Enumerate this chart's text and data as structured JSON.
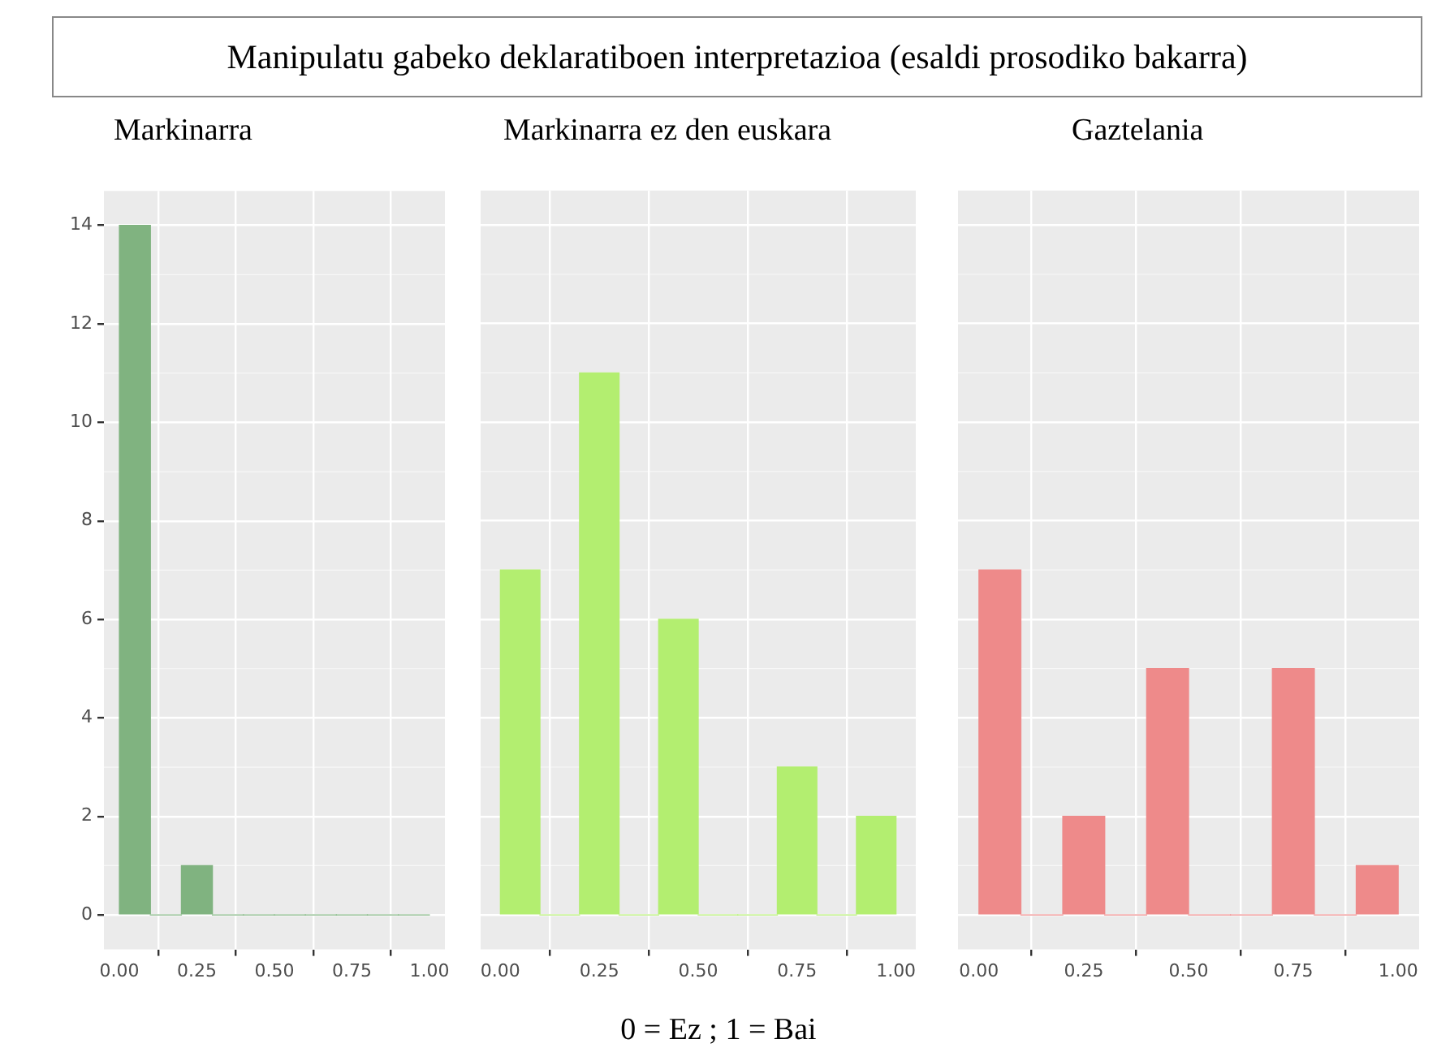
{
  "chart_data": [
    {
      "type": "histogram",
      "title": "Manipulatu gabeko deklaratiboen interpretazioa  (esaldi prosodiko bakarra)",
      "subtitle": "Markinarra",
      "bins": [
        0,
        0.1,
        0.2,
        0.3,
        0.4,
        0.5,
        0.6,
        0.7,
        0.8,
        0.9,
        1.0
      ],
      "values": [
        14,
        0,
        1,
        0,
        0,
        0,
        0,
        0,
        0,
        0
      ],
      "color": "#80b380",
      "xlim": [
        -0.05,
        1.05
      ],
      "xticks": [
        {
          "value": 0,
          "label": "0.00"
        },
        {
          "value": 0.25,
          "label": "0.25"
        },
        {
          "value": 0.5,
          "label": "0.50"
        },
        {
          "value": 0.75,
          "label": "0.75"
        },
        {
          "value": 1,
          "label": "1.00"
        }
      ],
      "ylim": [
        -0.7,
        14.7
      ],
      "yticks": [
        0,
        2,
        4,
        6,
        8,
        10,
        12,
        14
      ],
      "grid": true
    },
    {
      "type": "histogram",
      "subtitle": "Markinarra ez den euskara",
      "xlabel": "0 = Ez ; 1 = Bai",
      "bins": [
        0,
        0.1,
        0.2,
        0.3,
        0.4,
        0.5,
        0.6,
        0.7,
        0.8,
        0.9,
        1.0
      ],
      "values": [
        7,
        0,
        11,
        0,
        6,
        0,
        0,
        3,
        0,
        2
      ],
      "color": "#b3ee70",
      "xlim": [
        -0.05,
        1.05
      ],
      "xticks": [
        {
          "value": 0,
          "label": "0.00"
        },
        {
          "value": 0.25,
          "label": "0.25"
        },
        {
          "value": 0.5,
          "label": "0.50"
        },
        {
          "value": 0.75,
          "label": "0.75"
        },
        {
          "value": 1,
          "label": "1.00"
        }
      ],
      "ylim": [
        -0.7,
        14.7
      ],
      "yticks": [
        0,
        2,
        4,
        6,
        8,
        10,
        12,
        14
      ],
      "grid": true,
      "tick_labels": "x"
    },
    {
      "type": "histogram",
      "subtitle": "Gaztelania",
      "bins": [
        0,
        0.1,
        0.2,
        0.3,
        0.4,
        0.5,
        0.6,
        0.7,
        0.8,
        0.9,
        1.0
      ],
      "values": [
        7,
        0,
        2,
        0,
        5,
        0,
        0,
        5,
        0,
        1
      ],
      "color": "#ee8a8a",
      "xlim": [
        -0.05,
        1.05
      ],
      "xticks": [
        {
          "value": 0,
          "label": "0.00"
        },
        {
          "value": 0.25,
          "label": "0.25"
        },
        {
          "value": 0.5,
          "label": "0.50"
        },
        {
          "value": 0.75,
          "label": "0.75"
        },
        {
          "value": 1,
          "label": "1.00"
        }
      ],
      "ylim": [
        -0.7,
        14.7
      ],
      "yticks": [
        0,
        2,
        4,
        6,
        8,
        10,
        12,
        14
      ],
      "grid": true,
      "tick_labels": "x"
    }
  ]
}
